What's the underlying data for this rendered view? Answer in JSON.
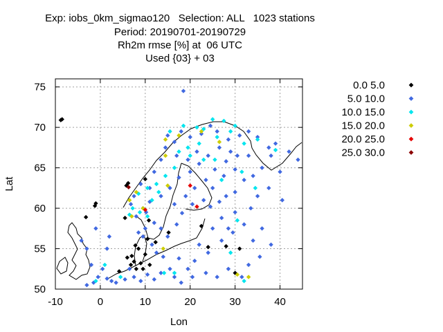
{
  "header": {
    "line1": "Exp: iobs_0km_sigmao120   Selection: ALL   1023 stations",
    "line2": "Period: 20190701-20190729",
    "line3": "Rh2m rmse [%] at  06 UTC",
    "line4": "Used {03} + 03"
  },
  "chart_data": {
    "type": "scatter",
    "title": "",
    "xlabel": "Lon",
    "ylabel": "Lat",
    "xlim": [
      -10,
      45
    ],
    "ylim": [
      50,
      76
    ],
    "xticks": [
      -10,
      0,
      10,
      20,
      30,
      40
    ],
    "yticks": [
      50,
      55,
      60,
      65,
      70,
      75
    ],
    "grid": true,
    "legend_position": "right",
    "series": [
      {
        "name": "0.0 5.0",
        "color": "#000000",
        "points": [
          [
            -8.8,
            70.9
          ],
          [
            -8.5,
            71.0
          ],
          [
            -1.2,
            60.3
          ],
          [
            -1.0,
            60.6
          ],
          [
            -3.2,
            58.9
          ],
          [
            5.8,
            62.8
          ],
          [
            6.2,
            63.1
          ],
          [
            5.5,
            58.8
          ],
          [
            7.0,
            54.1
          ],
          [
            4.2,
            52.2
          ],
          [
            7.5,
            53.4
          ],
          [
            6.0,
            53.9
          ],
          [
            8.5,
            55.0
          ],
          [
            9.0,
            53.2
          ],
          [
            10.0,
            54.3
          ],
          [
            11.0,
            53.0
          ],
          [
            8.0,
            52.5
          ],
          [
            12.3,
            55.8
          ],
          [
            10.5,
            56.2
          ],
          [
            7.8,
            55.4
          ],
          [
            9.5,
            52.5
          ],
          [
            10.8,
            58.5
          ],
          [
            6.8,
            53.0
          ],
          [
            10.0,
            63.6
          ],
          [
            24.0,
            55.2
          ],
          [
            30.0,
            52.0
          ],
          [
            31.0,
            55.0
          ],
          [
            28.0,
            55.3
          ],
          [
            22.5,
            57.8
          ],
          [
            15.2,
            57.0
          ]
        ]
      },
      {
        "name": "5.0 10.0",
        "color": "#4169e1",
        "points": [
          [
            18.5,
            74.5
          ],
          [
            15.0,
            69.0
          ],
          [
            16.5,
            68.2
          ],
          [
            18.0,
            69.5
          ],
          [
            20.0,
            68.8
          ],
          [
            22.5,
            69.2
          ],
          [
            24.5,
            70.2
          ],
          [
            26.0,
            69.5
          ],
          [
            28.5,
            68.5
          ],
          [
            30.5,
            66.5
          ],
          [
            28.0,
            65.8
          ],
          [
            25.5,
            64.8
          ],
          [
            22.0,
            65.5
          ],
          [
            20.0,
            64.5
          ],
          [
            17.5,
            63.8
          ],
          [
            15.5,
            62.5
          ],
          [
            13.5,
            61.5
          ],
          [
            11.0,
            60.8
          ],
          [
            9.5,
            60.0
          ],
          [
            7.5,
            61.5
          ],
          [
            6.8,
            60.5
          ],
          [
            8.0,
            59.0
          ],
          [
            10.2,
            59.5
          ],
          [
            12.0,
            58.2
          ],
          [
            13.5,
            57.5
          ],
          [
            15.0,
            56.5
          ],
          [
            17.0,
            58.0
          ],
          [
            18.2,
            59.4
          ],
          [
            16.5,
            60.5
          ],
          [
            19.0,
            61.5
          ],
          [
            21.0,
            62.5
          ],
          [
            23.0,
            61.0
          ],
          [
            25.0,
            62.5
          ],
          [
            26.5,
            60.8
          ],
          [
            28.0,
            61.5
          ],
          [
            30.0,
            62.0
          ],
          [
            32.0,
            63.5
          ],
          [
            34.0,
            64.0
          ],
          [
            36.0,
            65.0
          ],
          [
            38.0,
            66.5
          ],
          [
            40.0,
            64.5
          ],
          [
            42.0,
            67.0
          ],
          [
            44.0,
            66.0
          ],
          [
            33.5,
            60.0
          ],
          [
            32.0,
            58.0
          ],
          [
            30.0,
            59.5
          ],
          [
            28.5,
            57.5
          ],
          [
            27.0,
            56.0
          ],
          [
            25.0,
            57.5
          ],
          [
            24.0,
            54.5
          ],
          [
            22.0,
            55.5
          ],
          [
            21.0,
            53.5
          ],
          [
            19.5,
            52.5
          ],
          [
            17.5,
            53.8
          ],
          [
            15.5,
            52.5
          ],
          [
            13.5,
            52.0
          ],
          [
            12.0,
            51.2
          ],
          [
            10.5,
            51.8
          ],
          [
            9.0,
            51.0
          ],
          [
            7.5,
            51.5
          ],
          [
            6.5,
            52.5
          ],
          [
            5.5,
            51.2
          ],
          [
            3.5,
            50.8
          ],
          [
            2.5,
            51.0
          ],
          [
            1.5,
            51.3
          ],
          [
            0.5,
            52.5
          ],
          [
            -0.5,
            51.5
          ],
          [
            -1.5,
            50.8
          ],
          [
            -3.0,
            50.5
          ],
          [
            -2.0,
            53.0
          ],
          [
            -3.0,
            55.0
          ],
          [
            -4.2,
            56.0
          ],
          [
            -1.0,
            57.5
          ],
          [
            2.0,
            56.5
          ],
          [
            1.5,
            55.0
          ],
          [
            34.0,
            56.0
          ],
          [
            35.5,
            54.0
          ],
          [
            33.0,
            53.0
          ],
          [
            31.5,
            51.5
          ],
          [
            28.5,
            52.5
          ],
          [
            26.0,
            51.5
          ],
          [
            23.5,
            52.0
          ],
          [
            20.5,
            51.5
          ],
          [
            18.0,
            50.8
          ],
          [
            16.5,
            51.5
          ],
          [
            14.0,
            54.0
          ],
          [
            12.5,
            54.5
          ],
          [
            11.5,
            55.5
          ],
          [
            9.5,
            56.5
          ],
          [
            10.0,
            57.5
          ],
          [
            8.5,
            57.0
          ],
          [
            11.0,
            62.5
          ],
          [
            9.0,
            63.0
          ],
          [
            12.0,
            64.5
          ],
          [
            13.5,
            66.0
          ],
          [
            14.5,
            67.5
          ],
          [
            17.0,
            66.5
          ],
          [
            19.5,
            66.0
          ],
          [
            21.5,
            67.0
          ],
          [
            24.0,
            66.5
          ],
          [
            26.5,
            67.5
          ],
          [
            29.0,
            67.0
          ],
          [
            31.0,
            69.0
          ],
          [
            33.0,
            69.5
          ],
          [
            35.0,
            68.8
          ],
          [
            37.5,
            67.5
          ],
          [
            39.0,
            68.0
          ],
          [
            27.5,
            64.0
          ],
          [
            30.0,
            64.8
          ],
          [
            23.5,
            63.5
          ],
          [
            20.5,
            60.5
          ],
          [
            24.5,
            60.2
          ],
          [
            27.0,
            58.8
          ],
          [
            29.5,
            57.0
          ],
          [
            36.0,
            57.5
          ],
          [
            38.0,
            55.5
          ],
          [
            35.0,
            61.5
          ],
          [
            37.5,
            62.5
          ],
          [
            40.5,
            61.0
          ],
          [
            33.0,
            66.5
          ]
        ]
      },
      {
        "name": "10.0 15.0",
        "color": "#00e5ee",
        "points": [
          [
            15.5,
            69.5
          ],
          [
            18.5,
            70.2
          ],
          [
            21.5,
            70.0
          ],
          [
            23.0,
            69.8
          ],
          [
            25.0,
            71.0
          ],
          [
            27.5,
            70.8
          ],
          [
            30.0,
            70.2
          ],
          [
            29.0,
            69.5
          ],
          [
            26.0,
            68.8
          ],
          [
            32.0,
            68.0
          ],
          [
            35.0,
            68.5
          ],
          [
            39.0,
            67.2
          ],
          [
            17.5,
            67.0
          ],
          [
            19.5,
            67.5
          ],
          [
            22.0,
            68.0
          ],
          [
            16.5,
            65.0
          ],
          [
            14.5,
            64.0
          ],
          [
            12.5,
            63.0
          ],
          [
            10.5,
            62.5
          ],
          [
            8.5,
            61.8
          ],
          [
            7.2,
            60.0
          ],
          [
            6.5,
            59.2
          ],
          [
            8.8,
            59.5
          ],
          [
            10.5,
            59.0
          ],
          [
            13.0,
            62.0
          ],
          [
            20.0,
            66.5
          ],
          [
            25.5,
            66.0
          ],
          [
            27.0,
            63.5
          ],
          [
            31.5,
            64.5
          ],
          [
            34.5,
            62.5
          ],
          [
            30.5,
            58.5
          ],
          [
            29.0,
            54.5
          ],
          [
            32.0,
            51.0
          ],
          [
            16.5,
            52.0
          ],
          [
            14.2,
            52.0
          ],
          [
            4.5,
            51.5
          ],
          [
            -1.0,
            51.0
          ],
          [
            1.0,
            53.0
          ],
          [
            23.0,
            66.0
          ],
          [
            11.5,
            61.0
          ]
        ]
      },
      {
        "name": "15.0 20.0",
        "color": "#cdcd00",
        "points": [
          [
            14.5,
            68.5
          ],
          [
            17.5,
            69.0
          ],
          [
            22.5,
            69.5
          ],
          [
            26.5,
            68.2
          ],
          [
            15.0,
            62.8
          ],
          [
            7.0,
            59.0
          ],
          [
            9.5,
            60.0
          ],
          [
            6.5,
            61.0
          ],
          [
            14.0,
            55.0
          ],
          [
            30.5,
            51.8
          ],
          [
            33.0,
            51.5
          ],
          [
            14.5,
            66.5
          ],
          [
            8.0,
            62.0
          ]
        ]
      },
      {
        "name": "20.0 25.0",
        "color": "#e60000",
        "points": [
          [
            20.0,
            62.8
          ],
          [
            21.5,
            60.2
          ],
          [
            10.0,
            59.8
          ]
        ]
      },
      {
        "name": "25.0 30.0",
        "color": "#8b0000",
        "points": [
          [
            6.3,
            62.6
          ]
        ]
      }
    ]
  }
}
